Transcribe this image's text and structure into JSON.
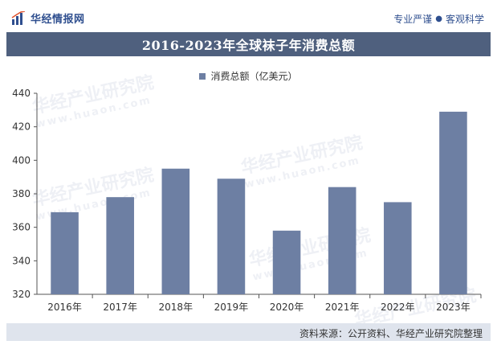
{
  "header": {
    "brand_name": "华经情报网",
    "slogan_left": "专业严谨",
    "slogan_dot": "●",
    "slogan_right": "客观科学"
  },
  "watermark": {
    "text": "华经产业研究院",
    "url": "www.huaon.com"
  },
  "footer": {
    "source": "资料来源：公开资料、华经产业研究院整理"
  },
  "colors": {
    "bar": "#6d7fa3",
    "title_bar": "#4f607e",
    "footer": "#dfe4ed",
    "brand": "#2f4f8f"
  },
  "chart_data": {
    "type": "bar",
    "title": "2016-2023年全球袜子年消费总额",
    "categories": [
      "2016年",
      "2017年",
      "2018年",
      "2019年",
      "2020年",
      "2021年",
      "2022年",
      "2023年"
    ],
    "series": [
      {
        "name": "消费总额（亿美元）",
        "values": [
          369,
          378,
          395,
          389,
          358,
          384,
          375,
          429
        ]
      }
    ],
    "ylim": [
      320,
      440
    ],
    "yticks": [
      320,
      340,
      360,
      380,
      400,
      420,
      440
    ],
    "grid": false,
    "legend": "top-center"
  }
}
